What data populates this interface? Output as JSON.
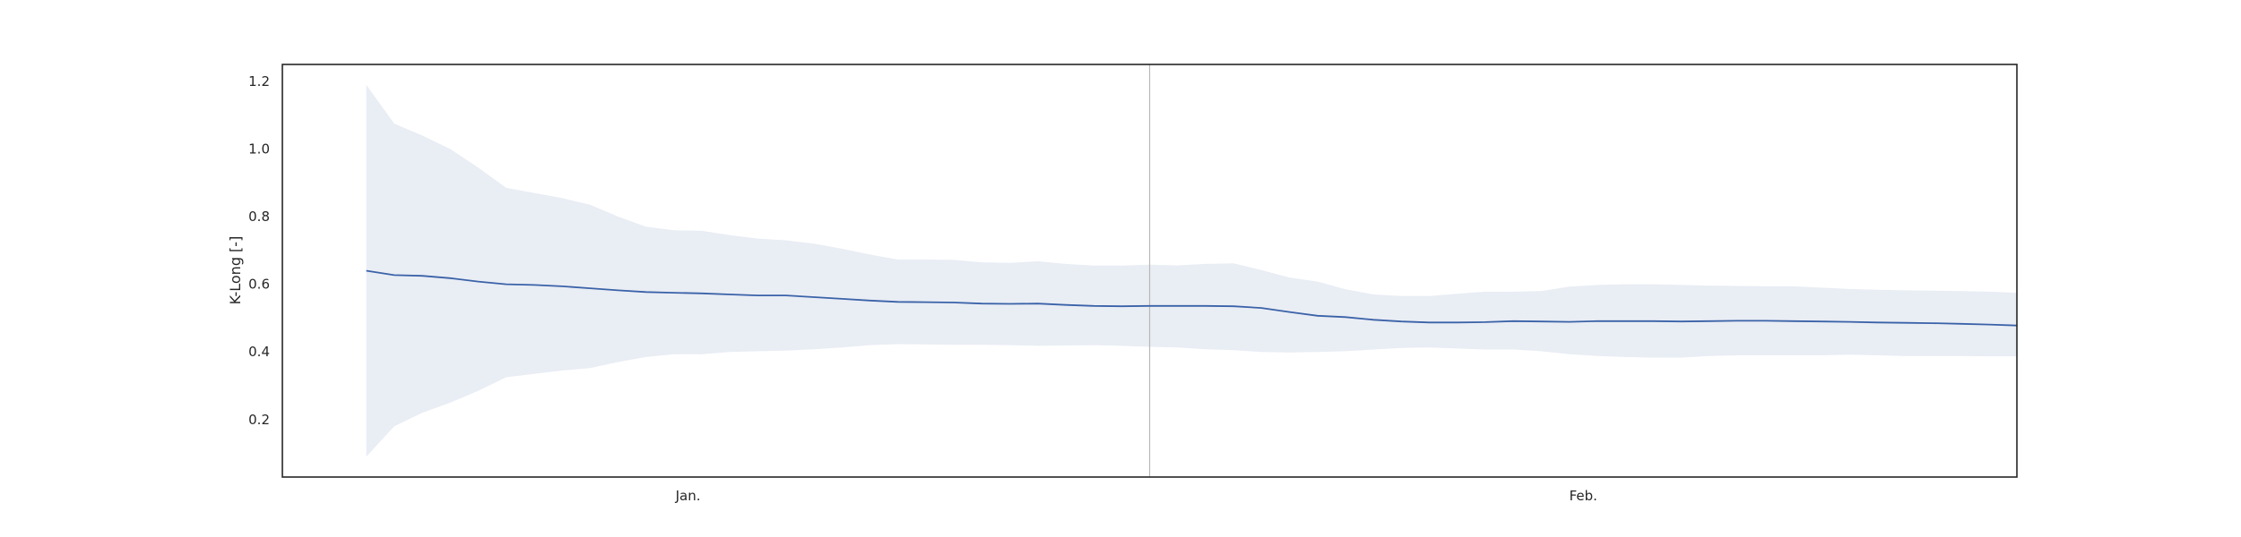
{
  "chart_data": {
    "type": "line",
    "title": "",
    "xlabel": "",
    "ylabel": "K-Long [-]",
    "ylim": [
      0.03,
      1.25
    ],
    "y_ticks": [
      0.2,
      0.4,
      0.6,
      0.8,
      1.0,
      1.2
    ],
    "y_tick_labels": [
      "0.2",
      "0.4",
      "0.6",
      "0.8",
      "1.0",
      "1.2"
    ],
    "x_tick_labels": [
      "Jan.",
      "Feb."
    ],
    "x_range": [
      0,
      62
    ],
    "x_tick_positions": [
      14.5,
      46.5
    ],
    "month_boundary_x": 31,
    "grid": false,
    "legend": "none",
    "colors": {
      "line": "#3a62a8",
      "band": "#e9edf4",
      "boundary": "#b8b8b8",
      "frame": "#262626"
    },
    "series": [
      {
        "x": [
          3,
          4,
          5,
          6,
          7,
          8,
          9,
          10,
          11,
          12,
          13,
          14,
          15,
          16,
          17,
          18,
          19,
          20,
          21,
          22,
          23,
          24,
          25,
          26,
          27,
          28,
          29,
          30,
          31,
          32,
          33,
          34,
          35,
          36,
          37,
          38,
          39,
          40,
          41,
          42,
          43,
          44,
          45,
          46,
          47,
          48,
          49,
          50,
          51,
          52,
          53,
          54,
          55,
          56,
          57,
          58,
          59,
          60,
          61,
          62
        ],
        "mean": [
          0.64,
          0.627,
          0.625,
          0.618,
          0.608,
          0.6,
          0.598,
          0.594,
          0.588,
          0.582,
          0.577,
          0.575,
          0.573,
          0.57,
          0.567,
          0.567,
          0.562,
          0.557,
          0.552,
          0.548,
          0.547,
          0.546,
          0.543,
          0.542,
          0.543,
          0.539,
          0.536,
          0.535,
          0.536,
          0.536,
          0.536,
          0.535,
          0.53,
          0.518,
          0.507,
          0.503,
          0.495,
          0.49,
          0.487,
          0.487,
          0.488,
          0.491,
          0.49,
          0.489,
          0.491,
          0.491,
          0.491,
          0.49,
          0.491,
          0.492,
          0.492,
          0.491,
          0.49,
          0.489,
          0.487,
          0.486,
          0.485,
          0.483,
          0.481,
          0.478
        ],
        "upper": [
          1.19,
          1.075,
          1.04,
          1.0,
          0.945,
          0.885,
          0.87,
          0.855,
          0.835,
          0.8,
          0.77,
          0.76,
          0.758,
          0.745,
          0.735,
          0.73,
          0.72,
          0.705,
          0.688,
          0.673,
          0.673,
          0.672,
          0.665,
          0.663,
          0.668,
          0.66,
          0.655,
          0.655,
          0.658,
          0.656,
          0.66,
          0.662,
          0.642,
          0.62,
          0.608,
          0.585,
          0.57,
          0.565,
          0.565,
          0.572,
          0.578,
          0.578,
          0.58,
          0.593,
          0.598,
          0.6,
          0.6,
          0.598,
          0.596,
          0.595,
          0.594,
          0.594,
          0.59,
          0.586,
          0.584,
          0.582,
          0.581,
          0.58,
          0.578,
          0.575
        ],
        "lower": [
          0.09,
          0.18,
          0.22,
          0.25,
          0.285,
          0.325,
          0.335,
          0.345,
          0.352,
          0.37,
          0.385,
          0.393,
          0.393,
          0.4,
          0.402,
          0.404,
          0.408,
          0.413,
          0.42,
          0.423,
          0.422,
          0.421,
          0.421,
          0.42,
          0.418,
          0.419,
          0.42,
          0.418,
          0.415,
          0.413,
          0.408,
          0.405,
          0.4,
          0.398,
          0.4,
          0.402,
          0.407,
          0.412,
          0.413,
          0.41,
          0.407,
          0.407,
          0.402,
          0.393,
          0.388,
          0.385,
          0.383,
          0.383,
          0.388,
          0.39,
          0.39,
          0.39,
          0.39,
          0.392,
          0.39,
          0.388,
          0.388,
          0.388,
          0.387,
          0.387
        ]
      }
    ]
  }
}
